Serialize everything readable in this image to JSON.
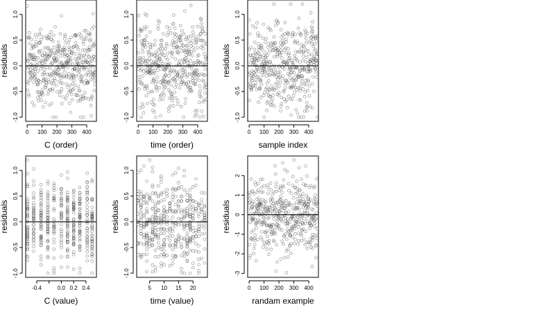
{
  "chart_data": [
    {
      "type": "scatter",
      "xlabel": "C (order)",
      "ylabel": "residuals",
      "xlim": [
        -10,
        465
      ],
      "ylim": [
        -1.08,
        1.28
      ],
      "xticks": [
        0,
        100,
        200,
        300,
        400
      ],
      "yticks": [
        -1.0,
        -0.5,
        0.0,
        0.5,
        1.0
      ],
      "xtick_labels": [
        "0",
        "100",
        "200",
        "300",
        "400"
      ],
      "ytick_labels": [
        "-1.0",
        "-0.5",
        "0.0",
        "0.5",
        "1.0"
      ],
      "hline": 0,
      "points": {
        "n": 460,
        "x_mode": "index",
        "x_min": 0,
        "x_max": 459,
        "y_sd": 0.42,
        "y_min": -1.0,
        "y_max": 1.2
      }
    },
    {
      "type": "scatter",
      "xlabel": "time (order)",
      "ylabel": "residuals",
      "xlim": [
        -10,
        465
      ],
      "ylim": [
        -1.08,
        1.28
      ],
      "xticks": [
        0,
        100,
        200,
        300,
        400
      ],
      "yticks": [
        -1.0,
        -0.5,
        0.0,
        0.5,
        1.0
      ],
      "xtick_labels": [
        "0",
        "100",
        "200",
        "300",
        "400"
      ],
      "ytick_labels": [
        "-1.0",
        "-0.5",
        "0.0",
        "0.5",
        "1.0"
      ],
      "hline": 0,
      "points": {
        "n": 460,
        "x_mode": "index",
        "x_min": 0,
        "x_max": 459,
        "y_sd": 0.42,
        "y_min": -1.0,
        "y_max": 1.2
      }
    },
    {
      "type": "scatter",
      "xlabel": "sample index",
      "ylabel": "residuals",
      "xlim": [
        -10,
        465
      ],
      "ylim": [
        -1.08,
        1.28
      ],
      "xticks": [
        0,
        100,
        200,
        300,
        400
      ],
      "yticks": [
        -1.0,
        -0.5,
        0.0,
        0.5,
        1.0
      ],
      "xtick_labels": [
        "0",
        "100",
        "200",
        "300",
        "400"
      ],
      "ytick_labels": [
        "-1.0",
        "-0.5",
        "0.0",
        "0.5",
        "1.0"
      ],
      "hline": 0,
      "points": {
        "n": 460,
        "x_mode": "index",
        "x_min": 0,
        "x_max": 459,
        "y_sd": 0.42,
        "y_min": -1.0,
        "y_max": 1.2
      }
    },
    {
      "type": "scatter",
      "xlabel": "C (value)",
      "ylabel": "residuals",
      "xlim": [
        -0.58,
        0.57
      ],
      "ylim": [
        -1.08,
        1.28
      ],
      "xticks": [
        -0.4,
        -0.2,
        0.0,
        0.2,
        0.4
      ],
      "yticks": [
        -1.0,
        -0.5,
        0.0,
        0.5,
        1.0
      ],
      "xtick_labels": [
        "-0.4",
        "",
        "0.0",
        "0.2",
        "0.4"
      ],
      "ytick_labels": [
        "-1.0",
        "-0.5",
        "0.0",
        "0.5",
        "1.0"
      ],
      "hline": 0,
      "points": {
        "n": 460,
        "x_mode": "discrete",
        "x_values": [
          -0.55,
          -0.45,
          -0.33,
          -0.22,
          -0.12,
          0.0,
          0.1,
          0.2,
          0.3,
          0.42,
          0.5
        ],
        "y_sd": 0.42,
        "y_min": -1.0,
        "y_max": 1.2
      }
    },
    {
      "type": "scatter",
      "xlabel": "time (value)",
      "ylabel": "residuals",
      "xlim": [
        0.5,
        25
      ],
      "ylim": [
        -1.08,
        1.28
      ],
      "xticks": [
        5,
        10,
        15,
        20
      ],
      "yticks": [
        -1.0,
        -0.5,
        0.0,
        0.5,
        1.0
      ],
      "xtick_labels": [
        "5",
        "10",
        "15",
        "20"
      ],
      "ytick_labels": [
        "-1.0",
        "-0.5",
        "0.0",
        "0.5",
        "1.0"
      ],
      "hline": 0,
      "points": {
        "n": 460,
        "x_mode": "discrete",
        "x_values": [
          1,
          2,
          3,
          4,
          5,
          6,
          7,
          8,
          9,
          10,
          11,
          12,
          13,
          14,
          15,
          16,
          17,
          18,
          19,
          20,
          21,
          22,
          23,
          24
        ],
        "y_sd": 0.42,
        "y_min": -1.0,
        "y_max": 1.2
      }
    },
    {
      "type": "scatter",
      "xlabel": "randam example",
      "ylabel": "residuals",
      "xlim": [
        -10,
        465
      ],
      "ylim": [
        -3.2,
        3.0
      ],
      "xticks": [
        0,
        100,
        200,
        300,
        400
      ],
      "yticks": [
        -3,
        -2,
        -1,
        0,
        1,
        2
      ],
      "xtick_labels": [
        "0",
        "100",
        "200",
        "300",
        "400"
      ],
      "ytick_labels": [
        "-3",
        "-2",
        "-1",
        "0",
        "1",
        "2"
      ],
      "hline": 0,
      "points": {
        "n": 460,
        "x_mode": "index",
        "x_min": 0,
        "x_max": 459,
        "y_sd": 1.0,
        "y_min": -3.0,
        "y_max": 2.8
      }
    }
  ]
}
